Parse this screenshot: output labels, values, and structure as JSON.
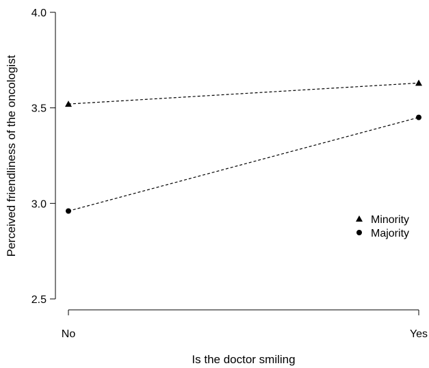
{
  "chart_data": {
    "type": "line",
    "categories": [
      "No",
      "Yes"
    ],
    "xlabel": "Is the doctor smiling",
    "ylabel": "Perceived friendliness of the oncologist",
    "ylim": [
      2.5,
      4.0
    ],
    "yticks": [
      "2.5",
      "3.0",
      "3.5",
      "4.0"
    ],
    "grid": false,
    "legend_placement": "right",
    "series": [
      {
        "name": "Minority",
        "marker": "triangle",
        "line_style": "dashed",
        "color": "#000000",
        "values": [
          3.52,
          3.63
        ]
      },
      {
        "name": "Majority",
        "marker": "circle",
        "line_style": "dashed",
        "color": "#000000",
        "values": [
          2.96,
          3.45
        ]
      }
    ]
  }
}
